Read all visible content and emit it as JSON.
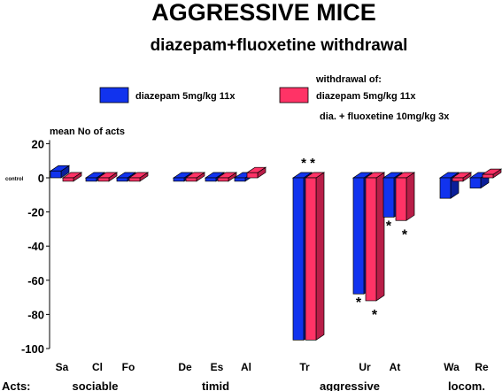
{
  "chart_data": {
    "type": "bar",
    "title": "AGGRESSIVE MICE",
    "subtitle": "diazepam+fluoxetine withdrawal",
    "ylabel": "mean No of acts",
    "ylim": [
      -100,
      20
    ],
    "yticks": [
      {
        "v": 20,
        "label": "20"
      },
      {
        "v": 0,
        "label": "0"
      },
      {
        "v": -20,
        "label": "-20"
      },
      {
        "v": -40,
        "label": "-40"
      },
      {
        "v": -60,
        "label": "-60"
      },
      {
        "v": -80,
        "label": "-80"
      },
      {
        "v": -100,
        "label": "-100"
      }
    ],
    "zero_label": "control",
    "legend_header": "withdrawal of:",
    "legend_note": "dia. + fluoxetine 10mg/kg 3x",
    "acts_label": "Acts:",
    "categories": [
      "Sa",
      "Cl",
      "Fo",
      "De",
      "Es",
      "Al",
      "Tr",
      "Ur",
      "At",
      "Wa",
      "Re"
    ],
    "groups": [
      {
        "label": "sociable",
        "members": [
          "Sa",
          "Cl",
          "Fo"
        ]
      },
      {
        "label": "timid",
        "members": [
          "De",
          "Es",
          "Al"
        ]
      },
      {
        "label": "aggressive",
        "members": [
          "Tr",
          "Ur",
          "At"
        ]
      },
      {
        "label": "locom.",
        "members": [
          "Wa",
          "Re"
        ]
      }
    ],
    "series": [
      {
        "name": "diazepam 5mg/kg 11x",
        "color": "#1133ee",
        "side": "#0b1f99",
        "values": [
          4,
          -2,
          -2,
          -2,
          -2,
          -2,
          -95,
          -68,
          -23,
          -12,
          -6
        ]
      },
      {
        "name": "diazepam 5mg/kg 11x",
        "color": "#ff3366",
        "side": "#b81e48",
        "values": [
          -2,
          -2,
          -2,
          -2,
          -2,
          3,
          -95,
          -72,
          -25,
          -2,
          2
        ]
      }
    ],
    "annotations": [
      {
        "category": "Tr",
        "text": "* *",
        "anchor": "above"
      },
      {
        "category": "Ur",
        "text": "*",
        "series": 0,
        "anchor": "below"
      },
      {
        "category": "Ur",
        "text": "*",
        "series": 1,
        "anchor": "below"
      },
      {
        "category": "At",
        "text": "*",
        "series": 0,
        "anchor": "below"
      },
      {
        "category": "At",
        "text": "*",
        "series": 1,
        "anchor": "below"
      }
    ],
    "grid": false
  }
}
